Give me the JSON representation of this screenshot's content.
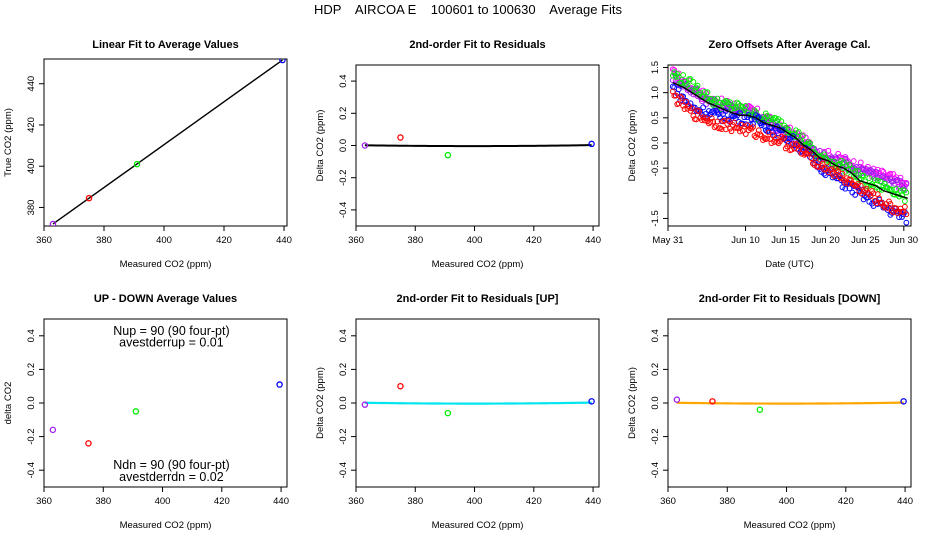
{
  "title": "HDP    AIRCOA E    100601 to 100630    Average Fits",
  "colors": {
    "purple": "#a020f0",
    "red": "#ff0000",
    "green": "#00ee00",
    "blue": "#0000ff",
    "black": "#000000",
    "cyan": "#00e5ee",
    "orange": "#ffa500",
    "magenta": "#ff00ff"
  },
  "chart_data": [
    {
      "id": "p1",
      "type": "scatter",
      "title": "Linear Fit to Average Values",
      "xlabel": "Measured CO2 (ppm)",
      "ylabel": "True CO2 (ppm)",
      "xlim": [
        360,
        441
      ],
      "ylim": [
        371,
        452
      ],
      "xticks": [
        360,
        380,
        400,
        420,
        440
      ],
      "xticklabels": [
        "360",
        "380",
        "400",
        "420",
        "440"
      ],
      "yticks": [
        380,
        400,
        420,
        440
      ],
      "yticklabels": [
        "380",
        "400",
        "420",
        "440"
      ],
      "points": [
        {
          "x": 363,
          "y": 372,
          "color": "purple"
        },
        {
          "x": 375,
          "y": 384.5,
          "color": "red"
        },
        {
          "x": 391,
          "y": 401,
          "color": "green"
        },
        {
          "x": 439.5,
          "y": 451.5,
          "color": "blue"
        }
      ],
      "lines": [
        {
          "color": "black",
          "x": [
            363,
            439.5
          ],
          "y": [
            372,
            451.5
          ]
        }
      ]
    },
    {
      "id": "p2",
      "type": "scatter",
      "title": "2nd-order Fit to Residuals",
      "xlabel": "Measured CO2 (ppm)",
      "ylabel": "Delta CO2 (ppm)",
      "xlim": [
        360,
        442
      ],
      "ylim": [
        -0.5,
        0.5
      ],
      "xticks": [
        360,
        380,
        400,
        420,
        440
      ],
      "xticklabels": [
        "360",
        "380",
        "400",
        "420",
        "440"
      ],
      "yticks": [
        -0.4,
        -0.2,
        0.0,
        0.2,
        0.4
      ],
      "yticklabels": [
        "-0.4",
        "-0.2",
        "0.0",
        "0.2",
        "0.4"
      ],
      "points": [
        {
          "x": 363,
          "y": 0.0,
          "color": "purple"
        },
        {
          "x": 375,
          "y": 0.05,
          "color": "red"
        },
        {
          "x": 391,
          "y": -0.06,
          "color": "green"
        },
        {
          "x": 439.5,
          "y": 0.01,
          "color": "blue"
        }
      ],
      "curves": [
        {
          "color": "black",
          "width": 2,
          "x0": 363,
          "x1": 439.5,
          "coef": [
            0.5975,
            -0.00301,
            3.768e-06
          ]
        }
      ]
    },
    {
      "id": "p3",
      "type": "scatter",
      "title": "Zero Offsets After Average Cal.",
      "xlabel": "Date (UTC)",
      "ylabel": "Delta CO2 (ppm)",
      "xlim": [
        0,
        30.4
      ],
      "ylim": [
        -1.65,
        1.55
      ],
      "xticks": [
        0,
        9.7,
        14.7,
        19.7,
        24.7,
        29.5
      ],
      "xticklabels": [
        "May 31",
        "Jun 10",
        "Jun 15",
        "Jun 20",
        "Jun 25",
        "Jun 30"
      ],
      "yticks": [
        1.5,
        1.0,
        0.5,
        0.0,
        -0.5,
        -1.0,
        -1.5
      ],
      "yticklabels": [
        "1.5",
        "1.0",
        "0.5",
        "0.0",
        "-0.5",
        "",
        "-1.5"
      ],
      "series": [
        {
          "color": "magenta",
          "trend": [
            [
              0.6,
              1.38
            ],
            [
              3,
              1.1
            ],
            [
              6,
              0.8
            ],
            [
              9,
              0.7
            ],
            [
              11,
              0.6
            ],
            [
              14,
              0.3
            ],
            [
              16,
              0.15
            ],
            [
              19,
              -0.2
            ],
            [
              22,
              -0.35
            ],
            [
              25,
              -0.55
            ],
            [
              28,
              -0.7
            ],
            [
              30,
              -0.85
            ]
          ]
        },
        {
          "color": "purple",
          "trend": [
            [
              0.6,
              1.33
            ],
            [
              3,
              1.05
            ],
            [
              6,
              0.75
            ],
            [
              9,
              0.65
            ],
            [
              11,
              0.55
            ],
            [
              14,
              0.25
            ],
            [
              16,
              0.1
            ],
            [
              19,
              -0.25
            ],
            [
              22,
              -0.4
            ],
            [
              25,
              -0.6
            ],
            [
              28,
              -0.75
            ],
            [
              30,
              -0.9
            ]
          ]
        },
        {
          "color": "green",
          "trend": [
            [
              0.6,
              1.37
            ],
            [
              3,
              1.15
            ],
            [
              6,
              0.8
            ],
            [
              9,
              0.7
            ],
            [
              11,
              0.55
            ],
            [
              14,
              0.4
            ],
            [
              16,
              0.2
            ],
            [
              19,
              -0.3
            ],
            [
              22,
              -0.45
            ],
            [
              25,
              -0.8
            ],
            [
              28,
              -0.9
            ],
            [
              30,
              -1.1
            ]
          ]
        },
        {
          "color": "blue",
          "trend": [
            [
              0.6,
              1.1
            ],
            [
              3,
              0.7
            ],
            [
              6,
              0.55
            ],
            [
              9,
              0.5
            ],
            [
              11,
              0.45
            ],
            [
              14,
              0.2
            ],
            [
              16,
              0.0
            ],
            [
              19,
              -0.45
            ],
            [
              22,
              -0.8
            ],
            [
              25,
              -1.1
            ],
            [
              28,
              -1.35
            ],
            [
              30,
              -1.5
            ]
          ]
        },
        {
          "color": "red",
          "trend": [
            [
              0.6,
              0.95
            ],
            [
              3,
              0.6
            ],
            [
              6,
              0.4
            ],
            [
              9,
              0.3
            ],
            [
              11,
              0.2
            ],
            [
              14,
              0.05
            ],
            [
              16,
              -0.1
            ],
            [
              19,
              -0.4
            ],
            [
              22,
              -0.7
            ],
            [
              25,
              -1.0
            ],
            [
              28,
              -1.3
            ],
            [
              30,
              -1.35
            ]
          ]
        }
      ],
      "lines": [
        {
          "color": "black",
          "x": [
            0.6,
            2,
            3.5,
            5,
            6.5,
            8,
            9,
            10,
            11,
            12,
            13,
            14,
            15,
            16,
            17,
            18,
            19,
            20,
            21,
            22,
            23,
            24,
            25,
            26,
            27,
            28,
            29,
            30
          ],
          "y": [
            1.2,
            1.1,
            0.95,
            0.8,
            0.7,
            0.6,
            0.55,
            0.55,
            0.5,
            0.4,
            0.35,
            0.3,
            0.2,
            0.1,
            -0.05,
            -0.15,
            -0.3,
            -0.35,
            -0.45,
            -0.5,
            -0.6,
            -0.75,
            -0.8,
            -0.85,
            -0.95,
            -1.0,
            -1.05,
            -1.1
          ]
        }
      ]
    },
    {
      "id": "p4",
      "type": "scatter",
      "title": "UP - DOWN Average Values",
      "xlabel": "Measured CO2 (ppm)",
      "ylabel": "delta CO2",
      "xlim": [
        360,
        442
      ],
      "ylim": [
        -0.5,
        0.5
      ],
      "xticks": [
        360,
        380,
        400,
        420,
        440
      ],
      "xticklabels": [
        "360",
        "380",
        "400",
        "420",
        "440"
      ],
      "yticks": [
        -0.4,
        -0.2,
        0.0,
        0.2,
        0.4
      ],
      "yticklabels": [
        "-0.4",
        "-0.2",
        "0.0",
        "0.2",
        "0.4"
      ],
      "points": [
        {
          "x": 363,
          "y": -0.16,
          "color": "purple"
        },
        {
          "x": 375,
          "y": -0.24,
          "color": "red"
        },
        {
          "x": 391,
          "y": -0.05,
          "color": "green"
        },
        {
          "x": 439.5,
          "y": 0.11,
          "color": "blue"
        }
      ],
      "annotations": [
        {
          "text": "Nup = 90 (90 four-pt)",
          "x": 403,
          "y": 0.43
        },
        {
          "text": "avestderrup =  0.01",
          "x": 403,
          "y": 0.36
        },
        {
          "text": "Ndn = 90 (90 four-pt)",
          "x": 403,
          "y": -0.37
        },
        {
          "text": "avestderrdn =  0.02",
          "x": 403,
          "y": -0.44
        }
      ]
    },
    {
      "id": "p5",
      "type": "scatter",
      "title": "2nd-order Fit to Residuals [UP]",
      "xlabel": "Measured CO2 (ppm)",
      "ylabel": "Delta CO2 (ppm)",
      "xlim": [
        360,
        442
      ],
      "ylim": [
        -0.5,
        0.5
      ],
      "xticks": [
        360,
        380,
        400,
        420,
        440
      ],
      "xticklabels": [
        "360",
        "380",
        "400",
        "420",
        "440"
      ],
      "yticks": [
        -0.4,
        -0.2,
        0.0,
        0.2,
        0.4
      ],
      "yticklabels": [
        "-0.4",
        "-0.2",
        "0.0",
        "0.2",
        "0.4"
      ],
      "points": [
        {
          "x": 363,
          "y": -0.01,
          "color": "purple"
        },
        {
          "x": 375,
          "y": 0.1,
          "color": "red"
        },
        {
          "x": 391,
          "y": -0.06,
          "color": "green"
        },
        {
          "x": 439.5,
          "y": 0.01,
          "color": "blue"
        }
      ],
      "curves": [
        {
          "color": "black",
          "width": 1.3,
          "x0": 363,
          "x1": 439.5,
          "coef": [
            0.5975,
            -0.00301,
            3.768e-06
          ]
        },
        {
          "color": "cyan",
          "width": 2.2,
          "x0": 363,
          "x1": 439.5,
          "coef": [
            0.5975,
            -0.00301,
            3.768e-06
          ]
        }
      ]
    },
    {
      "id": "p6",
      "type": "scatter",
      "title": "2nd-order Fit to Residuals [DOWN]",
      "xlabel": "Measured CO2 (ppm)",
      "ylabel": "Delta CO2 (ppm)",
      "xlim": [
        360,
        442
      ],
      "ylim": [
        -0.5,
        0.5
      ],
      "xticks": [
        360,
        380,
        400,
        420,
        440
      ],
      "xticklabels": [
        "360",
        "380",
        "400",
        "420",
        "440"
      ],
      "yticks": [
        -0.4,
        -0.2,
        0.0,
        0.2,
        0.4
      ],
      "yticklabels": [
        "-0.4",
        "-0.2",
        "0.0",
        "0.2",
        "0.4"
      ],
      "points": [
        {
          "x": 363,
          "y": 0.02,
          "color": "purple"
        },
        {
          "x": 375,
          "y": 0.01,
          "color": "red"
        },
        {
          "x": 391,
          "y": -0.04,
          "color": "green"
        },
        {
          "x": 439.5,
          "y": 0.01,
          "color": "blue"
        }
      ],
      "curves": [
        {
          "color": "black",
          "width": 1.3,
          "x0": 363,
          "x1": 439.5,
          "coef": [
            0.5975,
            -0.00301,
            3.768e-06
          ]
        },
        {
          "color": "orange",
          "width": 2.2,
          "x0": 363,
          "x1": 439.5,
          "coef": [
            0.5975,
            -0.00301,
            3.768e-06
          ]
        }
      ]
    }
  ]
}
